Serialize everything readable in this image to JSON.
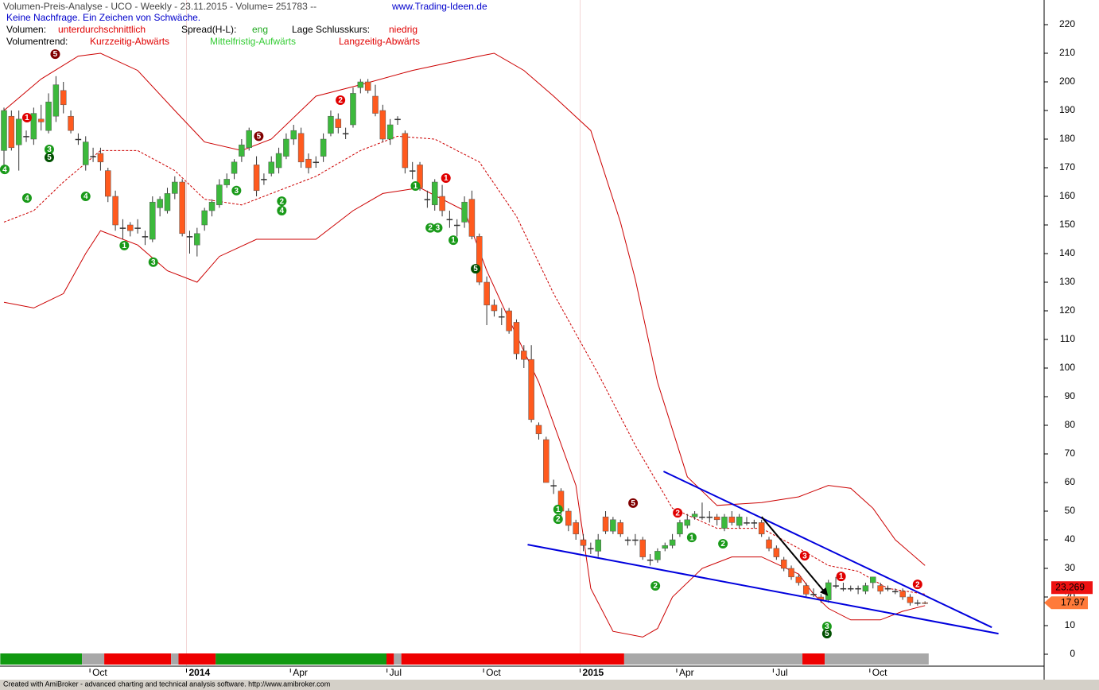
{
  "chart_data": {
    "type": "candlestick",
    "title": "Volumen-Preis-Analyse - UCO - Weekly  - 23.11.2015 - Volume= 251783 --",
    "url": "www.Trading-Ideen.de",
    "signal": "Keine Nachfrage. Ein Zeichen von Schwäche.",
    "volume_label": "Volumen:",
    "volume_value": "unterdurchschnittlich",
    "spread_label": "Spread(H-L):",
    "spread_value": "eng",
    "close_label": "Lage Schlusskurs:",
    "close_value": "niedrig",
    "trend_label": "Volumentrend:",
    "trend_short": "Kurzzeitig-Abwärts",
    "trend_mid": "Mittelfristig-Aufwärts",
    "trend_long": "Langzeitig-Abwärts",
    "up_color": "#3cb93c",
    "down_color": "#ff5a1e",
    "band_color": "#cc0000",
    "trendline_color": "#0000dd",
    "categories": [
      null,
      null,
      null,
      null,
      null,
      null,
      null,
      null,
      null,
      null,
      null,
      null,
      "Oct",
      null,
      null,
      null,
      null,
      null,
      null,
      null,
      null,
      null,
      null,
      null,
      null,
      "2014",
      null,
      null,
      null,
      null,
      null,
      null,
      null,
      null,
      null,
      null,
      null,
      null,
      null,
      "Apr",
      null,
      null,
      null,
      null,
      null,
      null,
      null,
      null,
      null,
      null,
      null,
      null,
      "Jul",
      null,
      null,
      null,
      null,
      null,
      null,
      null,
      null,
      null,
      null,
      null,
      null,
      "Oct",
      null,
      null,
      null,
      null,
      null,
      null,
      null,
      null,
      null,
      null,
      null,
      null,
      "2015",
      null,
      null,
      null,
      null,
      null,
      null,
      null,
      null,
      null,
      null,
      null,
      null,
      "Apr",
      null,
      null,
      null,
      null,
      null,
      null,
      null,
      null,
      null,
      null,
      null,
      null,
      "Jul",
      null,
      null,
      null,
      null,
      null,
      null,
      null,
      null,
      null,
      null,
      null,
      null,
      "Oct",
      null,
      null,
      null,
      null,
      null,
      null,
      null
    ],
    "ohlc": [
      [
        176,
        191,
        170,
        190
      ],
      [
        188,
        190,
        176,
        177
      ],
      [
        178,
        190,
        169,
        187
      ],
      [
        181,
        183,
        179,
        181
      ],
      [
        180,
        191,
        178,
        189
      ],
      [
        187,
        192,
        183,
        186
      ],
      [
        183,
        196,
        182,
        193
      ],
      [
        188,
        202,
        186,
        199
      ],
      [
        197,
        200,
        189,
        192
      ],
      [
        188,
        190,
        182,
        183
      ],
      [
        180,
        182,
        178,
        180
      ],
      [
        171,
        181,
        169,
        179
      ],
      [
        174,
        177,
        172,
        174
      ],
      [
        175,
        177,
        169,
        172
      ],
      [
        169,
        170,
        158,
        160
      ],
      [
        160,
        162,
        148,
        150
      ],
      [
        149,
        152,
        145,
        149
      ],
      [
        150,
        151,
        146,
        148
      ],
      [
        149,
        152,
        147,
        149
      ],
      [
        146,
        148,
        143,
        146
      ],
      [
        145,
        160,
        144,
        158
      ],
      [
        156,
        160,
        153,
        159
      ],
      [
        155,
        163,
        154,
        161
      ],
      [
        161,
        167,
        159,
        165
      ],
      [
        165,
        166,
        146,
        147
      ],
      [
        146,
        148,
        140,
        146
      ],
      [
        143,
        149,
        139,
        147
      ],
      [
        150,
        156,
        148,
        155
      ],
      [
        155,
        159,
        153,
        158
      ],
      [
        157,
        166,
        156,
        164
      ],
      [
        164,
        168,
        163,
        166
      ],
      [
        168,
        173,
        166,
        172
      ],
      [
        174,
        180,
        172,
        178
      ],
      [
        177,
        184,
        176,
        183
      ],
      [
        171,
        174,
        160,
        162
      ],
      [
        166,
        168,
        164,
        166
      ],
      [
        168,
        174,
        167,
        172
      ],
      [
        170,
        177,
        168,
        175
      ],
      [
        174,
        182,
        173,
        180
      ],
      [
        180,
        185,
        178,
        183
      ],
      [
        182,
        184,
        170,
        172
      ],
      [
        173,
        175,
        168,
        170
      ],
      [
        172,
        174,
        170,
        172
      ],
      [
        174,
        182,
        172,
        180
      ],
      [
        182,
        190,
        181,
        188
      ],
      [
        187,
        189,
        182,
        184
      ],
      [
        182,
        184,
        180,
        182
      ],
      [
        185,
        198,
        184,
        196
      ],
      [
        198,
        201,
        196,
        200
      ],
      [
        200,
        201,
        196,
        197
      ],
      [
        195,
        199,
        188,
        189
      ],
      [
        190,
        192,
        179,
        180
      ],
      [
        180,
        187,
        178,
        185
      ],
      [
        187,
        188,
        185,
        187
      ],
      [
        182,
        183,
        168,
        170
      ],
      [
        169,
        172,
        166,
        169
      ],
      [
        171,
        172,
        162,
        163
      ],
      [
        159,
        162,
        156,
        159
      ],
      [
        157,
        166,
        155,
        165
      ],
      [
        160,
        164,
        153,
        155
      ],
      [
        152,
        155,
        149,
        152
      ],
      [
        150,
        152,
        146,
        150
      ],
      [
        151,
        160,
        149,
        158
      ],
      [
        159,
        162,
        145,
        146
      ],
      [
        146,
        147,
        129,
        130
      ],
      [
        130,
        132,
        115,
        122
      ],
      [
        122,
        124,
        118,
        120
      ],
      [
        118,
        121,
        115,
        118
      ],
      [
        120,
        121,
        112,
        113
      ],
      [
        116,
        117,
        103,
        105
      ],
      [
        106,
        108,
        100,
        103
      ],
      [
        103,
        108,
        81,
        82
      ],
      [
        80,
        81,
        75,
        77
      ],
      [
        75,
        76,
        60,
        60
      ],
      [
        59,
        61,
        56,
        59
      ],
      [
        57,
        58,
        48,
        50
      ],
      [
        50,
        51,
        43,
        45
      ],
      [
        46,
        47,
        40,
        42
      ],
      [
        40,
        42,
        36,
        38
      ],
      [
        37,
        39,
        35,
        37
      ],
      [
        36,
        42,
        34,
        40
      ],
      [
        48,
        50,
        42,
        43
      ],
      [
        43,
        48,
        42,
        47
      ],
      [
        46,
        47,
        41,
        42
      ],
      [
        40,
        41,
        38,
        40
      ],
      [
        40,
        42,
        38,
        40
      ],
      [
        40,
        41,
        33,
        34
      ],
      [
        33,
        35,
        31,
        33
      ],
      [
        33,
        37,
        32,
        36
      ],
      [
        37,
        39,
        36,
        38
      ],
      [
        38,
        42,
        37,
        40
      ],
      [
        42,
        47,
        41,
        46
      ],
      [
        45,
        49,
        44,
        47
      ],
      [
        48,
        50,
        47,
        49
      ],
      [
        48,
        53,
        47,
        48
      ],
      [
        48,
        50,
        46,
        48
      ],
      [
        48,
        49,
        45,
        47
      ],
      [
        44,
        49,
        43,
        48
      ],
      [
        48,
        50,
        45,
        46
      ],
      [
        45,
        49,
        44,
        48
      ],
      [
        46,
        48,
        45,
        46
      ],
      [
        46,
        47,
        44,
        46
      ],
      [
        46,
        47,
        41,
        42
      ],
      [
        40,
        41,
        36,
        37
      ],
      [
        37,
        38,
        33,
        34
      ],
      [
        33,
        34,
        29,
        30
      ],
      [
        30,
        31,
        26,
        27
      ],
      [
        27,
        28,
        24,
        25
      ],
      [
        24,
        25,
        20,
        21
      ],
      [
        21,
        23,
        20,
        21
      ],
      [
        20,
        21,
        18,
        19
      ],
      [
        19,
        26,
        18,
        25
      ],
      [
        24,
        27,
        23,
        24
      ],
      [
        23,
        25,
        22,
        23
      ],
      [
        23,
        24,
        22,
        23
      ],
      [
        23,
        24,
        21,
        23
      ],
      [
        22,
        25,
        21,
        24
      ],
      [
        25,
        27,
        23,
        27
      ],
      [
        24,
        25,
        21,
        22
      ],
      [
        23,
        24,
        22,
        23
      ],
      [
        22,
        23,
        21,
        22
      ],
      [
        22,
        23,
        19,
        20
      ],
      [
        20,
        21,
        17,
        18
      ],
      [
        18,
        19,
        17,
        18
      ],
      [
        18,
        18.5,
        17.5,
        17.97
      ]
    ],
    "bands": [
      {
        "style": "solid",
        "x": [
          0,
          5,
          10,
          13,
          18,
          23,
          27,
          32,
          36,
          42,
          48,
          55,
          64,
          66,
          70,
          74,
          79,
          83,
          85,
          88,
          92,
          96,
          102,
          107,
          111,
          114,
          117,
          120,
          124
        ],
        "values": [
          190,
          201,
          209,
          210,
          204,
          190,
          179,
          176,
          180,
          195,
          199,
          204,
          209,
          210,
          204,
          195,
          183,
          151,
          131,
          95,
          62,
          52,
          53,
          55,
          59,
          58,
          51,
          40,
          31
        ]
      },
      {
        "style": "dashed",
        "x": [
          0,
          4,
          8,
          13,
          18,
          23,
          27,
          32,
          37,
          42,
          48,
          53,
          58,
          64,
          69,
          74,
          80,
          85,
          90,
          96,
          102,
          107,
          111,
          115,
          119,
          124
        ],
        "values": [
          151,
          155,
          165,
          176,
          176,
          169,
          159,
          157,
          162,
          167,
          176,
          181,
          180,
          172,
          153,
          126,
          98,
          73,
          51,
          44,
          44,
          37,
          31,
          29,
          23,
          21
        ]
      },
      {
        "style": "solid",
        "x": [
          0,
          4,
          8,
          11,
          13,
          18,
          22,
          26,
          29,
          34,
          38,
          42,
          47,
          51,
          56,
          62,
          65,
          68,
          72,
          77,
          79,
          82,
          86,
          88,
          90,
          94,
          98,
          102,
          107,
          109,
          111,
          114,
          118,
          121,
          124
        ],
        "values": [
          123,
          121,
          126,
          140,
          148,
          143,
          134,
          130,
          139,
          145,
          145,
          145,
          155,
          161,
          163,
          155,
          134,
          117,
          95,
          59,
          23,
          8,
          6,
          9,
          20,
          30,
          34,
          34,
          28,
          21,
          16,
          12,
          12,
          15,
          17
        ]
      }
    ],
    "trendlines": [
      {
        "x": [
          88.8,
          133
        ],
        "values": [
          63.9,
          9.4
        ]
      },
      {
        "x": [
          70.5,
          133.9
        ],
        "values": [
          38.3,
          7.2
        ]
      }
    ],
    "arrow": {
      "x": [
        102,
        110.8
      ],
      "values": [
        48,
        20.8
      ]
    },
    "markers": [
      {
        "x": 6.9,
        "value": 209.7,
        "label": "5",
        "color": "#800000"
      },
      {
        "x": 3.1,
        "value": 187.5,
        "label": "1",
        "color": "#e00000"
      },
      {
        "x": 6.1,
        "value": 176.4,
        "label": "3",
        "color": "#1a9a1a"
      },
      {
        "x": 6.1,
        "value": 173.6,
        "label": "5",
        "color": "#005000"
      },
      {
        "x": 0.1,
        "value": 169.4,
        "label": "4",
        "color": "#1a9a1a"
      },
      {
        "x": 3.1,
        "value": 159.4,
        "label": "4",
        "color": "#1a9a1a"
      },
      {
        "x": 11,
        "value": 160,
        "label": "4",
        "color": "#1a9a1a"
      },
      {
        "x": 16.2,
        "value": 142.8,
        "label": "1",
        "color": "#1a9a1a"
      },
      {
        "x": 20.1,
        "value": 137,
        "label": "3",
        "color": "#1a9a1a"
      },
      {
        "x": 31.3,
        "value": 162,
        "label": "3",
        "color": "#1a9a1a"
      },
      {
        "x": 34.3,
        "value": 181,
        "label": "5",
        "color": "#800000"
      },
      {
        "x": 37.4,
        "value": 158.3,
        "label": "2",
        "color": "#1a9a1a"
      },
      {
        "x": 37.4,
        "value": 155,
        "label": "4",
        "color": "#1a9a1a"
      },
      {
        "x": 45.3,
        "value": 193.6,
        "label": "2",
        "color": "#e00000"
      },
      {
        "x": 55.4,
        "value": 163.6,
        "label": "1",
        "color": "#1a9a1a"
      },
      {
        "x": 59.5,
        "value": 166.4,
        "label": "1",
        "color": "#e00000"
      },
      {
        "x": 57.4,
        "value": 149,
        "label": "2",
        "color": "#1a9a1a"
      },
      {
        "x": 58.4,
        "value": 149,
        "label": "3",
        "color": "#1a9a1a"
      },
      {
        "x": 60.5,
        "value": 144.7,
        "label": "1",
        "color": "#1a9a1a"
      },
      {
        "x": 63.5,
        "value": 134.7,
        "label": "5",
        "color": "#005000"
      },
      {
        "x": 74.6,
        "value": 50.6,
        "label": "1",
        "color": "#1a9a1a"
      },
      {
        "x": 74.6,
        "value": 47.2,
        "label": "2",
        "color": "#1a9a1a"
      },
      {
        "x": 84.7,
        "value": 52.8,
        "label": "5",
        "color": "#800000"
      },
      {
        "x": 90.7,
        "value": 49.4,
        "label": "2",
        "color": "#e00000"
      },
      {
        "x": 92.6,
        "value": 40.8,
        "label": "1",
        "color": "#1a9a1a"
      },
      {
        "x": 96.8,
        "value": 38.6,
        "label": "2",
        "color": "#1a9a1a"
      },
      {
        "x": 87.7,
        "value": 23.9,
        "label": "2",
        "color": "#1a9a1a"
      },
      {
        "x": 107.8,
        "value": 34.4,
        "label": "3",
        "color": "#e00000"
      },
      {
        "x": 112.7,
        "value": 27.2,
        "label": "1",
        "color": "#e00000"
      },
      {
        "x": 110.8,
        "value": 9.7,
        "label": "3",
        "color": "#1a9a1a"
      },
      {
        "x": 110.8,
        "value": 7.2,
        "label": "5",
        "color": "#005000"
      },
      {
        "x": 123,
        "value": 24.4,
        "label": "2",
        "color": "#e00000"
      }
    ],
    "trend_bar": [
      {
        "color": "#119911",
        "from": 0,
        "to": 10
      },
      {
        "color": "#a8a8a8",
        "from": 11,
        "to": 13
      },
      {
        "color": "#ee0000",
        "from": 14,
        "to": 22
      },
      {
        "color": "#a8a8a8",
        "from": 23,
        "to": 23
      },
      {
        "color": "#ee0000",
        "from": 24,
        "to": 28
      },
      {
        "color": "#119911",
        "from": 29,
        "to": 51
      },
      {
        "color": "#ee0000",
        "from": 52,
        "to": 52
      },
      {
        "color": "#a8a8a8",
        "from": 53,
        "to": 53
      },
      {
        "color": "#ee0000",
        "from": 54,
        "to": 83
      },
      {
        "color": "#a8a8a8",
        "from": 84,
        "to": 107
      },
      {
        "color": "#ee0000",
        "from": 108,
        "to": 110
      },
      {
        "color": "#a8a8a8",
        "from": 111,
        "to": 124
      }
    ],
    "price_labels": [
      {
        "value": 23.269,
        "color": "#ee1111",
        "shape": "box"
      },
      {
        "value": 17.97,
        "color": "#ff7a3a",
        "shape": "arrow"
      }
    ],
    "ylim": [
      0,
      220
    ],
    "yticks": [
      0,
      10,
      20,
      30,
      40,
      50,
      60,
      70,
      80,
      90,
      100,
      110,
      120,
      130,
      140,
      150,
      160,
      170,
      180,
      190,
      200,
      210,
      220
    ]
  },
  "footer": "Created with AmiBroker - advanced charting and technical analysis software. http://www.amibroker.com"
}
